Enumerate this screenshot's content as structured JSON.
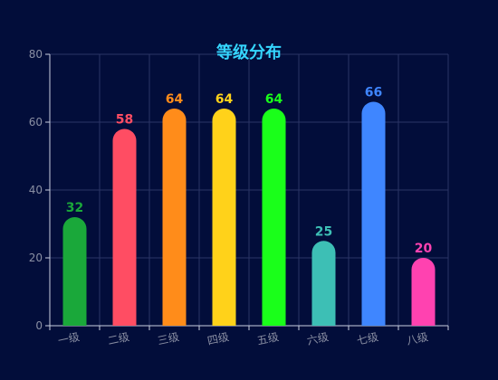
{
  "chart_data": {
    "type": "bar",
    "title": "等级分布",
    "xlabel": "",
    "ylabel": "",
    "categories": [
      "一级",
      "二级",
      "三级",
      "四级",
      "五级",
      "六级",
      "七级",
      "八级"
    ],
    "values": [
      32,
      58,
      64,
      64,
      64,
      25,
      66,
      20
    ],
    "bar_colors": [
      "#1aa83a",
      "#ff4d63",
      "#ff8c1a",
      "#ffd21a",
      "#1aff1a",
      "#3dbfb5",
      "#3f86ff",
      "#ff42b0"
    ],
    "ylim": [
      0,
      80
    ],
    "yticks": [
      0,
      20,
      40,
      60,
      80
    ],
    "grid": true,
    "bar_style": "rounded-top",
    "legend": "none"
  },
  "colors": {
    "background": "#020d3a",
    "title": "#35d6ff",
    "axis": "#c9cfe0",
    "grid": "#2b3566",
    "tick_text": "#8a8fa3"
  }
}
